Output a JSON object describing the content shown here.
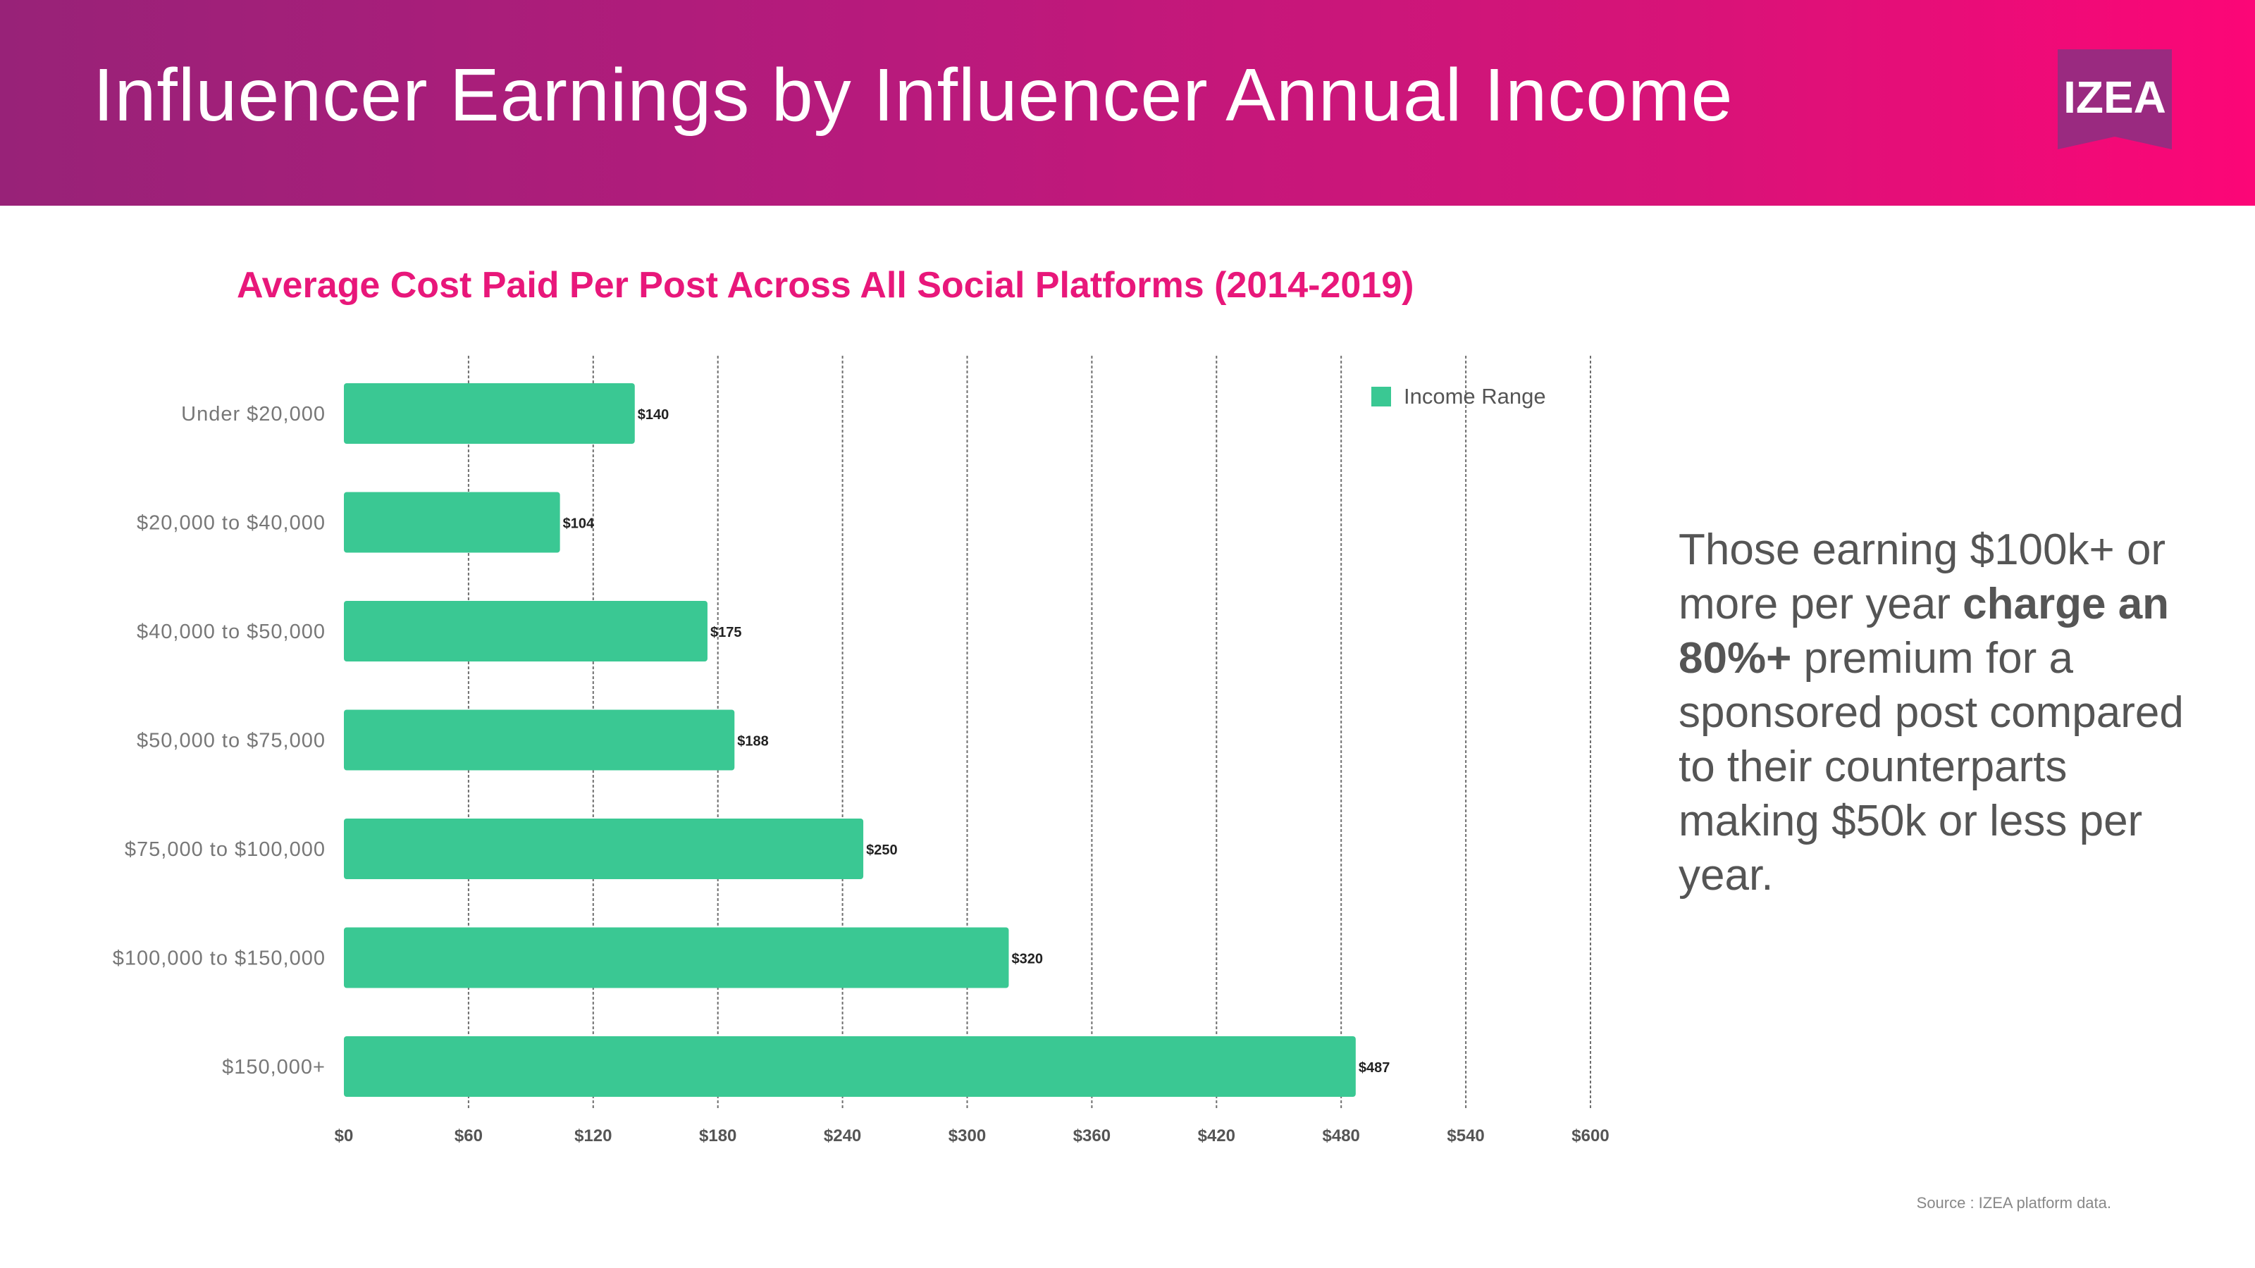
{
  "header": {
    "title": "Influencer Earnings by Influencer Annual Income",
    "logo_text": "IZEA"
  },
  "colors": {
    "bar": "#3ac893",
    "chart_title": "#e8177a",
    "gridline": "#6f6f6f",
    "axis_text": "#555555",
    "category_text": "#777777",
    "value_label": "#222222",
    "logo_bg": "#9a2a80"
  },
  "callout": {
    "text_before": "Those earning $100k+ or more per year ",
    "text_bold": "charge an 80%+",
    "text_after": " premium for a sponsored post compared to their counterparts making $50k or less per year."
  },
  "source": "Source : IZEA platform data.",
  "chart_data": {
    "type": "bar",
    "orientation": "horizontal",
    "title": "Average Cost Paid Per Post Across All Social Platforms (2014-2019)",
    "categories": [
      "Under $20,000",
      "$20,000 to $40,000",
      "$40,000 to $50,000",
      "$50,000 to $75,000",
      "$75,000 to $100,000",
      "$100,000 to $150,000",
      "$150,000+"
    ],
    "series": [
      {
        "name": "Income Range",
        "values": [
          140,
          104,
          175,
          188,
          250,
          320,
          487
        ],
        "labels": [
          "$140",
          "$104",
          "$175",
          "$188",
          "$250",
          "$320",
          "$487"
        ]
      }
    ],
    "xlim": [
      0,
      600
    ],
    "xticks": [
      0,
      60,
      120,
      180,
      240,
      300,
      360,
      420,
      480,
      540,
      600
    ],
    "xtick_labels": [
      "$0",
      "$60",
      "$120",
      "$180",
      "$240",
      "$300",
      "$360",
      "$420",
      "$480",
      "$540",
      "$600"
    ],
    "grid": true,
    "legend_position": "top-right"
  }
}
